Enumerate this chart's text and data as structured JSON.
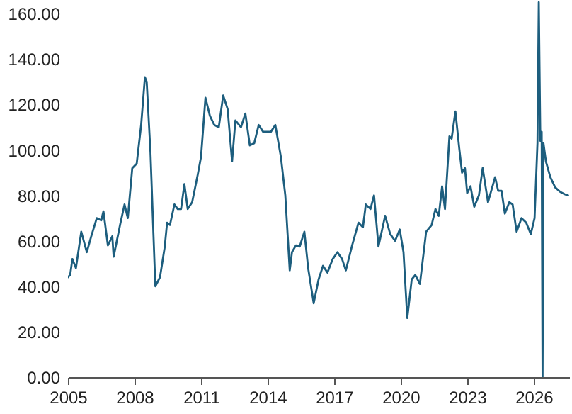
{
  "chart_data": {
    "type": "line",
    "x": [
      2005.0,
      2005.1,
      2005.2,
      2005.36,
      2005.6,
      2005.85,
      2006.05,
      2006.3,
      2006.5,
      2006.6,
      2006.8,
      2007.0,
      2007.06,
      2007.35,
      2007.55,
      2007.7,
      2007.9,
      2008.1,
      2008.3,
      2008.47,
      2008.55,
      2008.72,
      2008.94,
      2009.15,
      2009.36,
      2009.47,
      2009.6,
      2009.8,
      2009.95,
      2010.1,
      2010.25,
      2010.4,
      2010.6,
      2010.85,
      2011.0,
      2011.2,
      2011.4,
      2011.6,
      2011.8,
      2012.0,
      2012.2,
      2012.4,
      2012.55,
      2012.8,
      2013.0,
      2013.2,
      2013.4,
      2013.6,
      2013.8,
      2014.15,
      2014.35,
      2014.6,
      2014.8,
      2015.0,
      2015.1,
      2015.28,
      2015.45,
      2015.66,
      2015.83,
      2016.08,
      2016.3,
      2016.5,
      2016.7,
      2016.94,
      2017.15,
      2017.36,
      2017.53,
      2017.8,
      2018.1,
      2018.3,
      2018.43,
      2018.64,
      2018.8,
      2019.0,
      2019.3,
      2019.53,
      2019.75,
      2019.96,
      2020.13,
      2020.3,
      2020.5,
      2020.66,
      2020.87,
      2021.15,
      2021.4,
      2021.57,
      2021.72,
      2021.87,
      2022.0,
      2022.2,
      2022.3,
      2022.47,
      2022.64,
      2022.77,
      2022.9,
      2023.0,
      2023.15,
      2023.32,
      2023.53,
      2023.7,
      2023.94,
      2024.26,
      2024.4,
      2024.55,
      2024.7,
      2024.9,
      2025.05,
      2025.23,
      2025.45,
      2025.66,
      2025.87,
      2026.04,
      2026.17,
      2026.23,
      2026.3,
      2026.36,
      2026.4,
      2026.44,
      2026.55,
      2026.75,
      2026.97,
      2027.2,
      2027.4,
      2027.55
    ],
    "series": [
      {
        "color": "#1d5e7e",
        "values": [
          44,
          45,
          52,
          48,
          64,
          55,
          62,
          70,
          69,
          73,
          58,
          62,
          53,
          67,
          76,
          70,
          92,
          94,
          111,
          132,
          130,
          99,
          40,
          44,
          57,
          68,
          67,
          76,
          74,
          74,
          85,
          74,
          77,
          89,
          97,
          123,
          115,
          111,
          110,
          124,
          118,
          95,
          113,
          110,
          116,
          102,
          103,
          111,
          108,
          108,
          111,
          97,
          80,
          47,
          55,
          58,
          57.5,
          64,
          48,
          32.5,
          43,
          49,
          46,
          52,
          55,
          52,
          47,
          57.5,
          68,
          66,
          76,
          74,
          80,
          57.5,
          71,
          63,
          60,
          65,
          55,
          26,
          43,
          45,
          41,
          64,
          67,
          74,
          71,
          84,
          74,
          106,
          105,
          117,
          101,
          90,
          92,
          81,
          84,
          75,
          80,
          92,
          77,
          88,
          82,
          82,
          72,
          77,
          76,
          64,
          70,
          68,
          63,
          70,
          103,
          165,
          104,
          108,
          0,
          103,
          95,
          88,
          83.5,
          81.5,
          80.5,
          80
        ]
      }
    ],
    "xlim": [
      2005,
      2027.6
    ],
    "xticks": [
      2005,
      2008,
      2011,
      2014,
      2017,
      2020,
      2023,
      2026
    ],
    "ylim": [
      0,
      166
    ],
    "yticks": [
      {
        "value": 0,
        "label": "0.00"
      },
      {
        "value": 20,
        "label": "20.00"
      },
      {
        "value": 40,
        "label": "40.00"
      },
      {
        "value": 60,
        "label": "60.00"
      },
      {
        "value": 80,
        "label": "80.00"
      },
      {
        "value": 100,
        "label": "100.00"
      },
      {
        "value": 120,
        "label": "120.00"
      },
      {
        "value": 140,
        "label": "140.00"
      },
      {
        "value": 160,
        "label": "160.00"
      }
    ],
    "grid": false
  }
}
